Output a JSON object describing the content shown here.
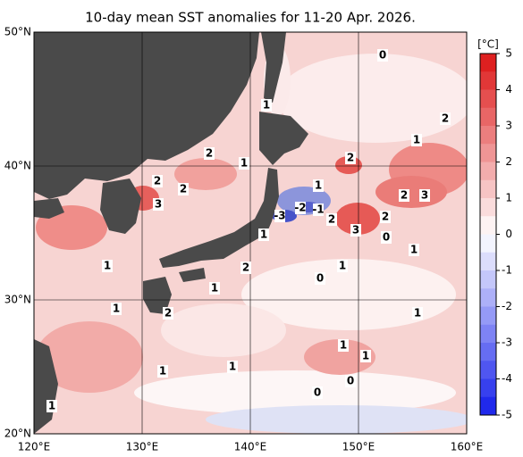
{
  "title": "10-day mean SST anomalies for 11-20 Apr. 2026.",
  "lon_labels": [
    {
      "value": 120,
      "label": "120°E"
    },
    {
      "value": 130,
      "label": "130°E"
    },
    {
      "value": 140,
      "label": "140°E"
    },
    {
      "value": 150,
      "label": "150°E"
    },
    {
      "value": 160,
      "label": "160°E"
    }
  ],
  "lat_labels": [
    {
      "value": 20,
      "label": "20°N"
    },
    {
      "value": 30,
      "label": "30°N"
    },
    {
      "value": 40,
      "label": "40°N"
    },
    {
      "value": 50,
      "label": "50°N"
    }
  ],
  "colorbar": {
    "unit": "[°C]",
    "ticks": [
      5,
      4,
      3,
      2,
      1,
      0,
      -1,
      -2,
      -3,
      -4,
      -5
    ]
  },
  "contour_labels": [
    "0",
    "1",
    "2",
    "1",
    "2",
    "1",
    "2",
    "2",
    "2",
    "3",
    "1",
    "-2",
    "-1",
    "-3",
    "2",
    "2",
    "3",
    "2",
    "3",
    "0",
    "1",
    "1",
    "1",
    "2",
    "1",
    "0",
    "1",
    "1",
    "2",
    "1",
    "1",
    "1",
    "1",
    "1",
    "0",
    "0",
    "1"
  ]
}
